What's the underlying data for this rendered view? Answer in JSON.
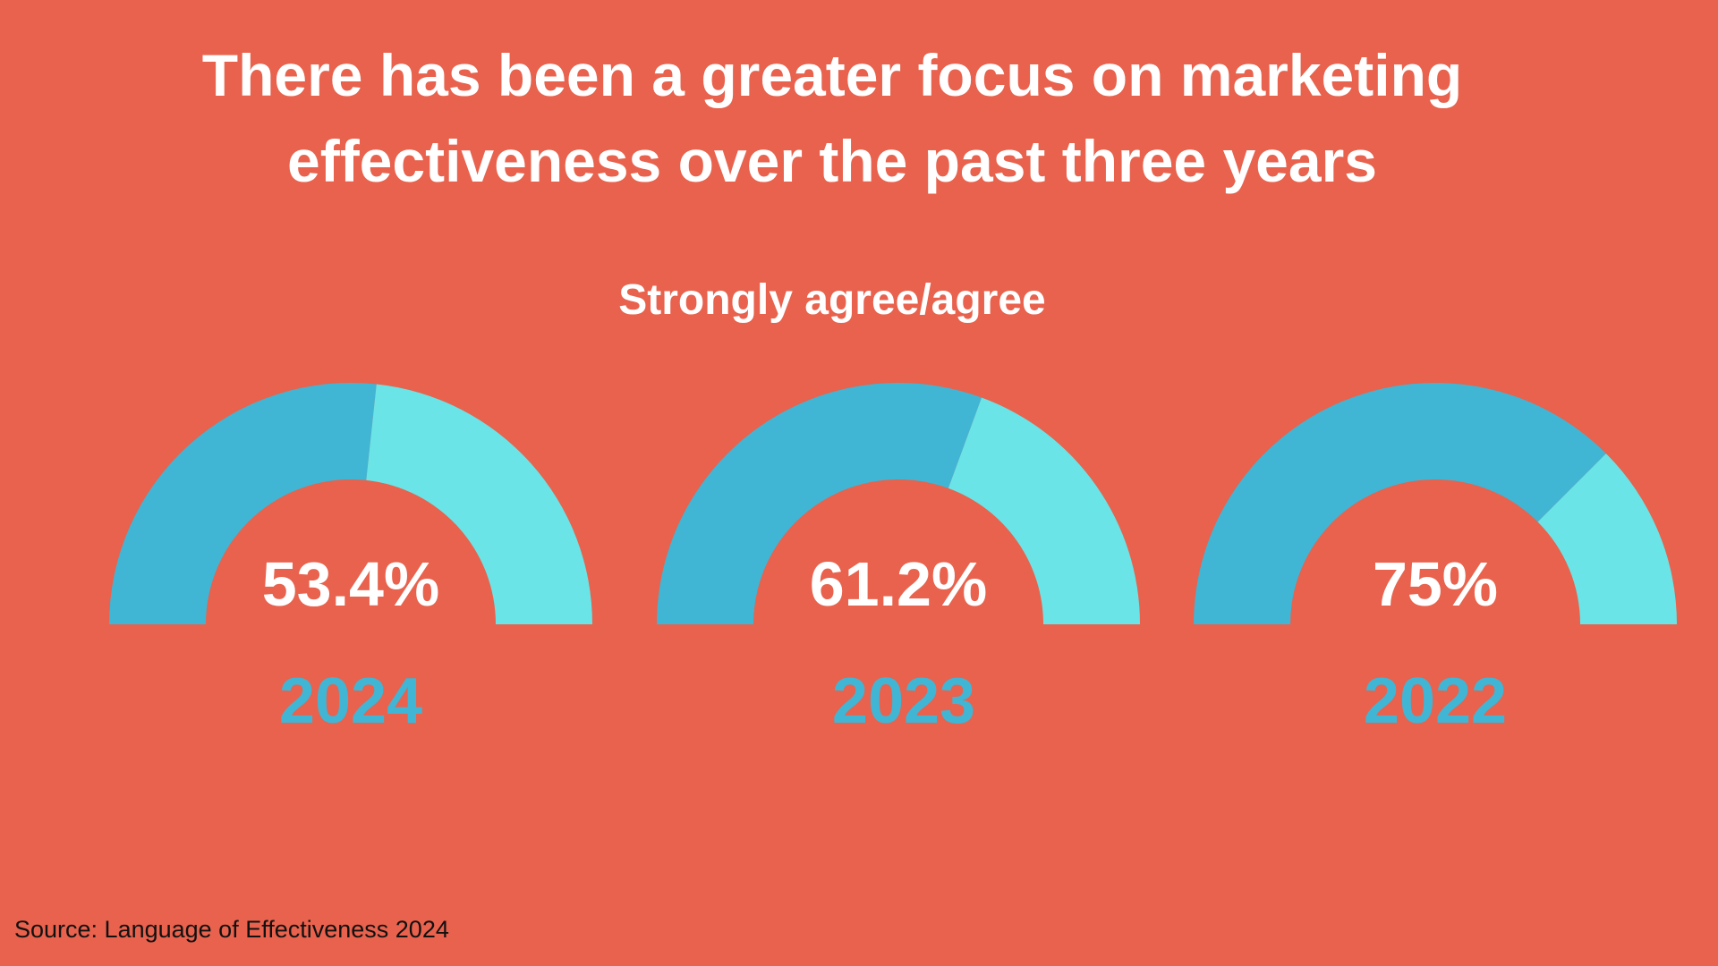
{
  "chart_data": {
    "type": "gauge",
    "title": "There has been a greater focus on marketing effectiveness over the past three years",
    "subtitle": "Strongly agree/agree",
    "gauges": [
      {
        "category": "2024",
        "value": 53.4,
        "label": "53.4%"
      },
      {
        "category": "2023",
        "value": 61.2,
        "label": "61.2%"
      },
      {
        "category": "2022",
        "value": 75,
        "label": "75%"
      }
    ],
    "range": [
      0,
      100
    ],
    "colors": {
      "filled": "#41b5d4",
      "remaining": "#6ae4e6",
      "background": "#e8624d",
      "year_label": "#41b5d4",
      "value_label": "#ffffff"
    }
  },
  "source": "Source: Language of Effectiveness 2024"
}
